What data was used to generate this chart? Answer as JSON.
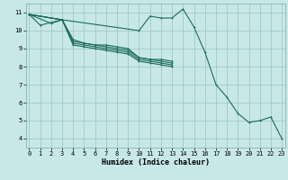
{
  "xlabel": "Humidex (Indice chaleur)",
  "bg_color": "#c8e8e8",
  "grid_color": "#a0c8c8",
  "line_color": "#1a6b5a",
  "series": [
    {
      "x": [
        0,
        2,
        3,
        10,
        11,
        12,
        13,
        14,
        15,
        16,
        17,
        18,
        19,
        20,
        21,
        22,
        23
      ],
      "y": [
        10.9,
        10.4,
        10.6,
        10.0,
        10.8,
        10.7,
        10.7,
        11.2,
        10.2,
        8.8,
        7.0,
        6.3,
        5.4,
        4.9,
        5.0,
        5.2,
        4.0
      ]
    },
    {
      "x": [
        0,
        1,
        3,
        4,
        5,
        6,
        7,
        8,
        9,
        10,
        11,
        12,
        13
      ],
      "y": [
        10.9,
        10.3,
        10.6,
        9.5,
        9.3,
        9.2,
        9.2,
        9.1,
        9.0,
        8.5,
        8.4,
        8.4,
        8.3
      ]
    },
    {
      "x": [
        0,
        3,
        4,
        5,
        6,
        7,
        8,
        9,
        10,
        11,
        12,
        13
      ],
      "y": [
        10.9,
        10.6,
        9.4,
        9.3,
        9.2,
        9.1,
        9.0,
        8.9,
        8.5,
        8.4,
        8.3,
        8.2
      ]
    },
    {
      "x": [
        0,
        3,
        4,
        5,
        6,
        7,
        8,
        9,
        10,
        11,
        12,
        13
      ],
      "y": [
        10.9,
        10.6,
        9.3,
        9.2,
        9.1,
        9.0,
        8.9,
        8.8,
        8.4,
        8.3,
        8.2,
        8.1
      ]
    },
    {
      "x": [
        0,
        3,
        4,
        5,
        6,
        7,
        8,
        9,
        10,
        11,
        12,
        13
      ],
      "y": [
        10.9,
        10.6,
        9.2,
        9.1,
        9.0,
        8.9,
        8.8,
        8.7,
        8.3,
        8.2,
        8.1,
        8.0
      ]
    }
  ],
  "xlim": [
    -0.3,
    23.3
  ],
  "ylim": [
    3.5,
    11.5
  ],
  "yticks": [
    4,
    5,
    6,
    7,
    8,
    9,
    10,
    11
  ],
  "xticks": [
    0,
    1,
    2,
    3,
    4,
    5,
    6,
    7,
    8,
    9,
    10,
    11,
    12,
    13,
    14,
    15,
    16,
    17,
    18,
    19,
    20,
    21,
    22,
    23
  ],
  "tick_fontsize": 5.0,
  "xlabel_fontsize": 6.0,
  "lw": 0.8,
  "ms": 2.0
}
